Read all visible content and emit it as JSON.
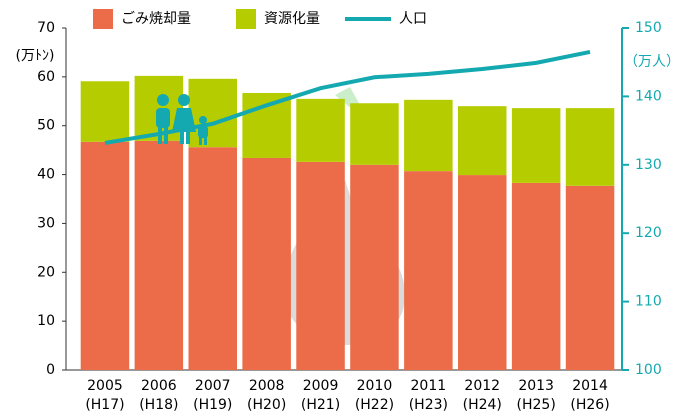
{
  "chart_data": {
    "type": "bar",
    "stacked": true,
    "categories": [
      "2005",
      "2006",
      "2007",
      "2008",
      "2009",
      "2010",
      "2011",
      "2012",
      "2013",
      "2014"
    ],
    "category_sublabels": [
      "(H17)",
      "(H18)",
      "(H19)",
      "(H20)",
      "(H21)",
      "(H22)",
      "(H23)",
      "(H24)",
      "(H25)",
      "(H26)"
    ],
    "y_label": "(万ﾄﾝ)",
    "y2_label": "（万人）",
    "ylim": [
      0,
      70
    ],
    "yticks": [
      0,
      10,
      20,
      30,
      40,
      50,
      60,
      70
    ],
    "y2lim": [
      100,
      150
    ],
    "y2ticks": [
      100,
      110,
      120,
      130,
      140,
      150
    ],
    "series": [
      {
        "name": "ごみ焼却量",
        "type": "bar",
        "color": "#ec6c4a",
        "values": [
          46.7,
          46.9,
          45.6,
          43.4,
          42.6,
          42.0,
          40.7,
          39.9,
          38.3,
          37.7
        ]
      },
      {
        "name": "資源化量",
        "type": "bar",
        "color": "#b5cc00",
        "values": [
          12.4,
          13.3,
          14.0,
          13.3,
          12.9,
          12.6,
          14.6,
          14.1,
          15.3,
          15.9
        ]
      },
      {
        "name": "人口",
        "type": "line",
        "axis": "y2",
        "color": "#14a9b0",
        "values": [
          133.2,
          134.5,
          136.0,
          138.7,
          141.2,
          142.8,
          143.3,
          144.0,
          144.9,
          146.5
        ]
      }
    ]
  }
}
